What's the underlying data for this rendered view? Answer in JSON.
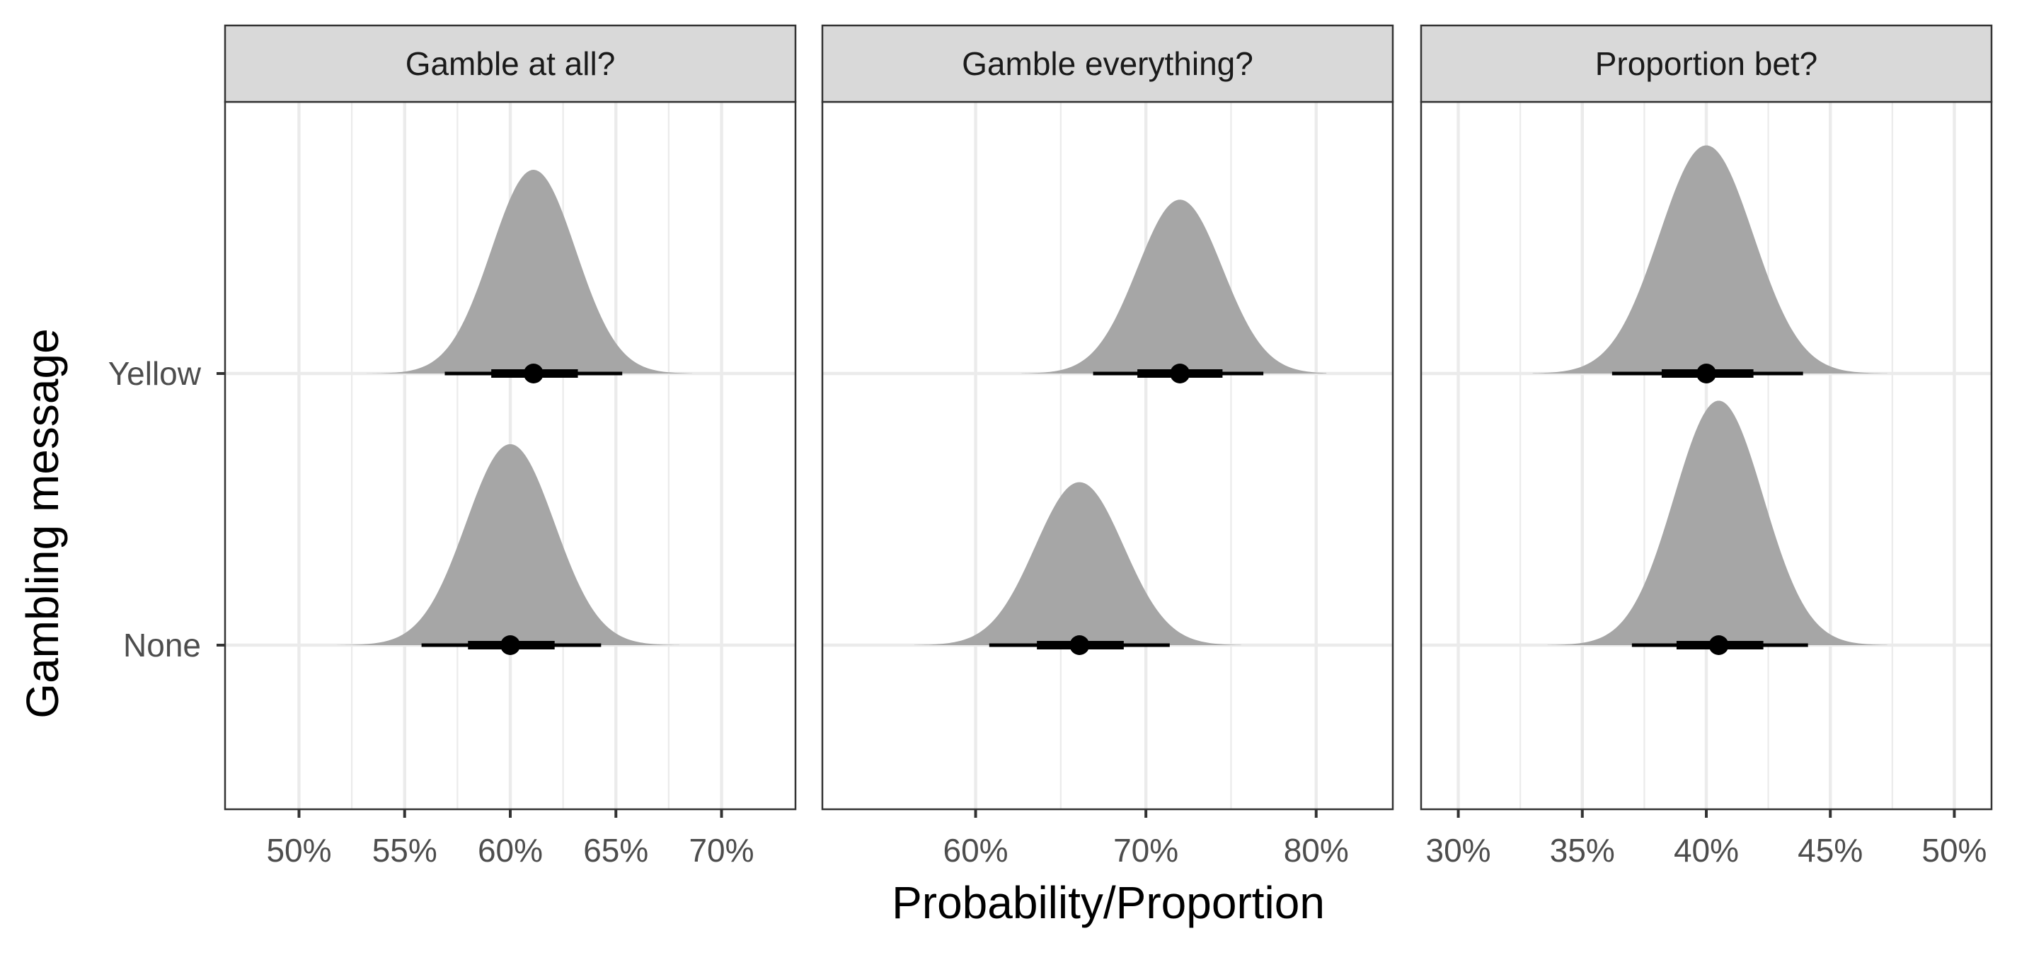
{
  "chart_data": {
    "type": "halfeye",
    "xlabel": "Probability/Proportion",
    "ylabel": "Gambling message",
    "categories": [
      "Yellow",
      "None"
    ],
    "colors": {
      "density": "#a6a6a6",
      "interval": "#000000",
      "grid": "#ebebeb",
      "strip_fill": "#d9d9d9",
      "border": "#333333"
    },
    "panels": [
      {
        "title": "Gamble at all?",
        "xlim": [
          46.5,
          73.5
        ],
        "xticks": [
          50,
          55,
          60,
          65,
          70
        ],
        "xtick_labels": [
          "50%",
          "55%",
          "60%",
          "65%",
          "70%"
        ],
        "series": [
          {
            "name": "Yellow",
            "mean": 61.1,
            "sd": 2.0,
            "range": [
              53.2,
              68.6
            ],
            "height": 0.75,
            "median": 61.1,
            "interval_66": [
              59.1,
              63.2
            ],
            "interval_95": [
              56.9,
              65.3
            ]
          },
          {
            "name": "None",
            "mean": 60.0,
            "sd": 2.1,
            "range": [
              51.8,
              68.0
            ],
            "height": 0.74,
            "median": 60.0,
            "interval_66": [
              58.0,
              62.1
            ],
            "interval_95": [
              55.8,
              64.3
            ]
          }
        ]
      },
      {
        "title": "Gamble everything?",
        "xlim": [
          51.0,
          84.5
        ],
        "xticks": [
          60,
          70,
          80
        ],
        "xtick_labels": [
          "60%",
          "70%",
          "80%"
        ],
        "series": [
          {
            "name": "Yellow",
            "mean": 72.0,
            "sd": 2.5,
            "range": [
              62.7,
              80.6
            ],
            "height": 0.64,
            "median": 72.0,
            "interval_66": [
              69.5,
              74.5
            ],
            "interval_95": [
              66.9,
              76.9
            ]
          },
          {
            "name": "None",
            "mean": 66.1,
            "sd": 2.6,
            "range": [
              56.4,
              75.6
            ],
            "height": 0.6,
            "median": 66.1,
            "interval_66": [
              63.6,
              68.7
            ],
            "interval_95": [
              60.8,
              71.4
            ]
          }
        ]
      },
      {
        "title": "Proportion bet?",
        "xlim": [
          28.5,
          51.5
        ],
        "xticks": [
          30,
          35,
          40,
          45,
          50
        ],
        "xtick_labels": [
          "30%",
          "35%",
          "40%",
          "45%",
          "50%"
        ],
        "series": [
          {
            "name": "Yellow",
            "mean": 40.0,
            "sd": 1.9,
            "range": [
              33.0,
              47.3
            ],
            "height": 0.84,
            "median": 40.0,
            "interval_66": [
              38.2,
              41.9
            ],
            "interval_95": [
              36.2,
              43.9
            ]
          },
          {
            "name": "None",
            "mean": 40.5,
            "sd": 1.8,
            "range": [
              33.6,
              47.3
            ],
            "height": 0.9,
            "median": 40.5,
            "interval_66": [
              38.8,
              42.3
            ],
            "interval_95": [
              37.0,
              44.1
            ]
          }
        ]
      }
    ]
  }
}
